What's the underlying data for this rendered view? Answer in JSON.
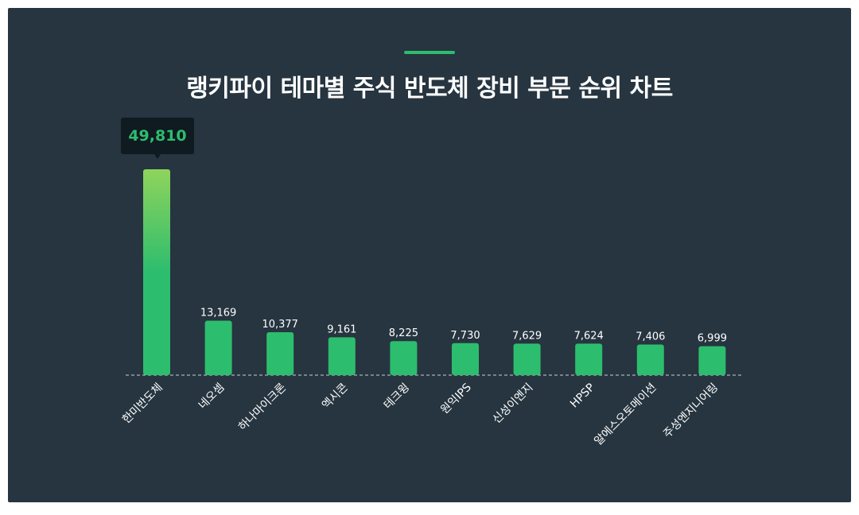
{
  "header": {
    "title": "랭키파이 테마별 주식 반도체 장비 부문 순위 차트"
  },
  "colors": {
    "background": "#263540",
    "accent": "#2dbd6e",
    "bar": "#2dbd6e",
    "top_bar_gradient_start": "#8fd45c",
    "tooltip_bg": "#0f1a21"
  },
  "chart_data": {
    "type": "bar",
    "title": "랭키파이 테마별 주식 반도체 장비 부문 순위 차트",
    "categories": [
      "한미반도체",
      "네오셈",
      "하나마이크론",
      "엑시콘",
      "테크윙",
      "원익IPS",
      "신성이엔지",
      "HPSP",
      "알에스오토메이션",
      "주성엔지니어링"
    ],
    "values": [
      49810,
      13169,
      10377,
      9161,
      8225,
      7730,
      7629,
      7624,
      7406,
      6999
    ],
    "value_labels": [
      "49,810",
      "13,169",
      "10,377",
      "9,161",
      "8,225",
      "7,730",
      "7,629",
      "7,624",
      "7,406",
      "6,999"
    ],
    "highlighted_index": 0,
    "ylim": [
      0,
      49810
    ],
    "grid": false,
    "baseline": "dashed",
    "xlabel": "",
    "ylabel": ""
  }
}
